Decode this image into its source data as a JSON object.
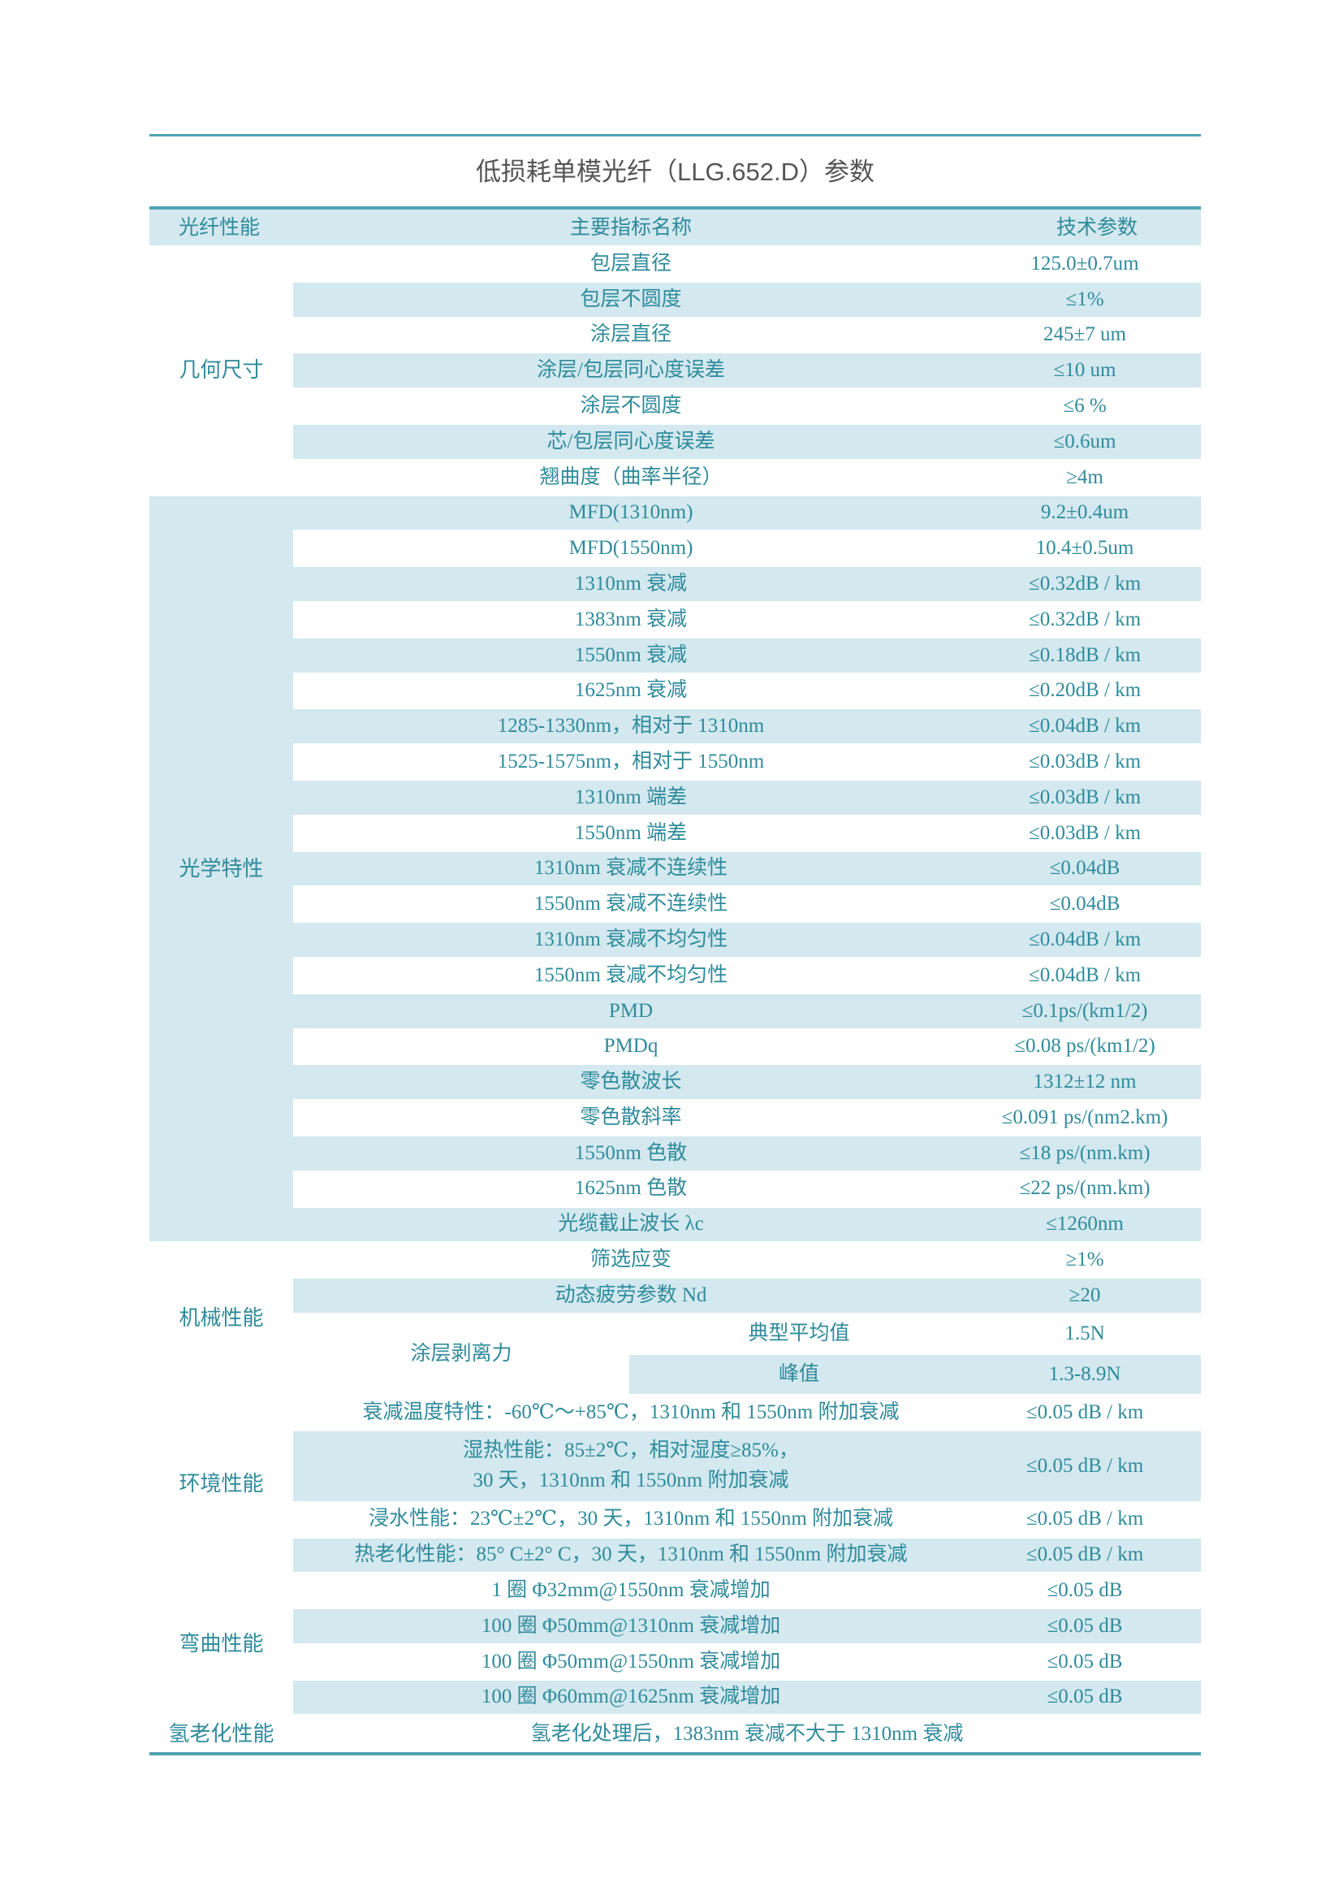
{
  "title": "低损耗单模光纤（LLG.652.D）参数",
  "header": {
    "category": "光纤性能",
    "name": "主要指标名称",
    "value": "技术参数"
  },
  "colors": {
    "accent": "#4fa3b3",
    "shade": "#d3e8ef",
    "text": "#2f8b9b"
  },
  "sections": [
    {
      "category": "几何尺寸",
      "category_shaded": false,
      "rows": [
        {
          "name": "包层直径",
          "value": "125.0±0.7um"
        },
        {
          "name": "包层不圆度",
          "value": "≤1%"
        },
        {
          "name": "涂层直径",
          "value": "245±7 um"
        },
        {
          "name": "涂层/包层同心度误差",
          "value": "≤10 um"
        },
        {
          "name": "涂层不圆度",
          "value": "≤6 %"
        },
        {
          "name": "芯/包层同心度误差",
          "value": "≤0.6um"
        },
        {
          "name": "翘曲度（曲率半径）",
          "value": "≥4m"
        }
      ]
    },
    {
      "category": "光学特性",
      "category_shaded": true,
      "rows": [
        {
          "name": "MFD(1310nm)",
          "value": "9.2±0.4um"
        },
        {
          "name": "MFD(1550nm)",
          "value": "10.4±0.5um"
        },
        {
          "name": "1310nm 衰减",
          "value": "≤0.32dB / km"
        },
        {
          "name": "1383nm 衰减",
          "value": "≤0.32dB / km"
        },
        {
          "name": "1550nm 衰减",
          "value": "≤0.18dB / km"
        },
        {
          "name": "1625nm 衰减",
          "value": "≤0.20dB / km"
        },
        {
          "name": "1285-1330nm，相对于 1310nm",
          "value": "≤0.04dB / km"
        },
        {
          "name": "1525-1575nm，相对于 1550nm",
          "value": "≤0.03dB / km"
        },
        {
          "name": "1310nm 端差",
          "value": "≤0.03dB / km"
        },
        {
          "name": "1550nm 端差",
          "value": "≤0.03dB / km"
        },
        {
          "name": "1310nm 衰减不连续性",
          "value": "≤0.04dB"
        },
        {
          "name": "1550nm 衰减不连续性",
          "value": "≤0.04dB"
        },
        {
          "name": "1310nm 衰减不均匀性",
          "value": "≤0.04dB / km"
        },
        {
          "name": "1550nm 衰减不均匀性",
          "value": "≤0.04dB / km"
        },
        {
          "name": "PMD",
          "value": "≤0.1ps/(km1/2)"
        },
        {
          "name": "PMDq",
          "value": "≤0.08 ps/(km1/2)"
        },
        {
          "name": "零色散波长",
          "value": "1312±12 nm"
        },
        {
          "name": "零色散斜率",
          "value": "≤0.091 ps/(nm2.km)"
        },
        {
          "name": "1550nm 色散",
          "value": "≤18 ps/(nm.km)"
        },
        {
          "name": "1625nm 色散",
          "value": "≤22 ps/(nm.km)"
        },
        {
          "name": "光缆截止波长 λc",
          "value": "≤1260nm"
        }
      ]
    },
    {
      "category": "机械性能",
      "category_shaded": false,
      "rows": [
        {
          "name": "筛选应变",
          "value": "≥1%"
        },
        {
          "name": "动态疲劳参数 Nd",
          "value": "≥20"
        },
        {
          "name": "涂层剥离力",
          "sub": [
            {
              "name": "典型平均值",
              "value": "1.5N"
            },
            {
              "name": "峰值",
              "value": "1.3-8.9N"
            }
          ]
        }
      ]
    },
    {
      "category": "环境性能",
      "category_shaded": false,
      "rows": [
        {
          "name": "衰减温度特性：-60℃～+85℃，1310nm 和 1550nm 附加衰减",
          "value": "≤0.05 dB / km"
        },
        {
          "name": "湿热性能：85±2℃，相对湿度≥85%，",
          "name2": "30 天，1310nm 和 1550nm 附加衰减",
          "value": "≤0.05 dB / km"
        },
        {
          "name": "浸水性能：23℃±2℃，30 天，1310nm 和 1550nm 附加衰减",
          "value": "≤0.05 dB / km"
        },
        {
          "name": "热老化性能：85° C±2° C，30 天，1310nm 和 1550nm 附加衰减",
          "value": "≤0.05 dB / km"
        }
      ]
    },
    {
      "category": "弯曲性能",
      "category_shaded": false,
      "rows": [
        {
          "name": "1 圈 Φ32mm@1550nm 衰减增加",
          "value": "≤0.05 dB"
        },
        {
          "name": "100 圈 Φ50mm@1310nm 衰减增加",
          "value": "≤0.05 dB"
        },
        {
          "name": "100 圈 Φ50mm@1550nm 衰减增加",
          "value": "≤0.05 dB"
        },
        {
          "name": "100 圈 Φ60mm@1625nm 衰减增加",
          "value": "≤0.05 dB"
        }
      ]
    },
    {
      "category": "氢老化性能",
      "category_shaded": false,
      "merged": "氢老化处理后，1383nm 衰减不大于 1310nm 衰减"
    }
  ]
}
